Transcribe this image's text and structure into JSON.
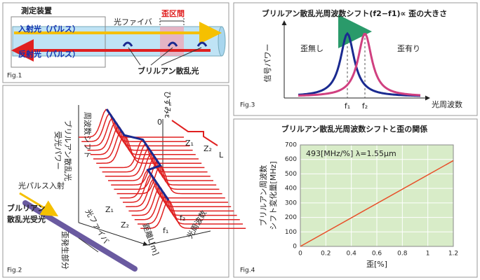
{
  "fig1": {
    "label": "Fig.1",
    "device": "測定装置",
    "incident": "入射光（パルス）",
    "reflected": "反射光（パルス）",
    "fiber": "光ファイバ",
    "strain_section": "歪区間",
    "scattered": "ブリルアン散乱光"
  },
  "fig2": {
    "label": "Fig.2",
    "power_axis": [
      "ブリルアン散乱光",
      "受光パワー"
    ],
    "freq_shift": "周波数シフト",
    "strain_axis": "ひずみε",
    "zero": "0",
    "strain_ticks": [
      "Z₁",
      "Z₂",
      "L"
    ],
    "pulse_in": "光パルス入射",
    "receiver": [
      "ブルリアン",
      "散乱光受光"
    ],
    "strain_part": "歪発生部分",
    "fiber": "光ファイバ",
    "distance_ticks": [
      "Z₁",
      "Z₂"
    ],
    "distance": "距離L[m]",
    "freq_ticks": [
      "f₁",
      "f₂"
    ],
    "freq_axis": "光周波数"
  },
  "fig3": {
    "label": "Fig.3",
    "title": "ブリルアン散乱光周波数シフト(f2−f1)∝ 歪の大きさ",
    "y_axis": "信号パワー",
    "no_strain": "歪無し",
    "with_strain": "歪有り",
    "freq_ticks": [
      "f₁",
      "f₂"
    ],
    "x_axis": "光周波数"
  },
  "chart_data": {
    "type": "line",
    "title": "ブリルアン散乱光周波数シフトと歪の関係",
    "figure_label": "Fig.4",
    "annotation": "493[MHz/%]  λ=1.55μm",
    "xlabel": "歪[%]",
    "ylabel": [
      "ブリルアン周波数",
      "シフト変化量[MHz]"
    ],
    "x": [
      0,
      1.2
    ],
    "series": [
      {
        "color": "#e8502a",
        "values": [
          0,
          591.6
        ]
      }
    ],
    "xlim": [
      0,
      1.2
    ],
    "xticks": [
      0,
      0.2,
      0.4,
      0.6,
      0.8,
      1,
      1.2
    ],
    "ylim": [
      0,
      700
    ],
    "yticks": [
      0,
      100,
      200,
      300,
      400,
      500,
      600,
      700
    ],
    "grid": true,
    "plot_background": "#d8ecc8"
  }
}
